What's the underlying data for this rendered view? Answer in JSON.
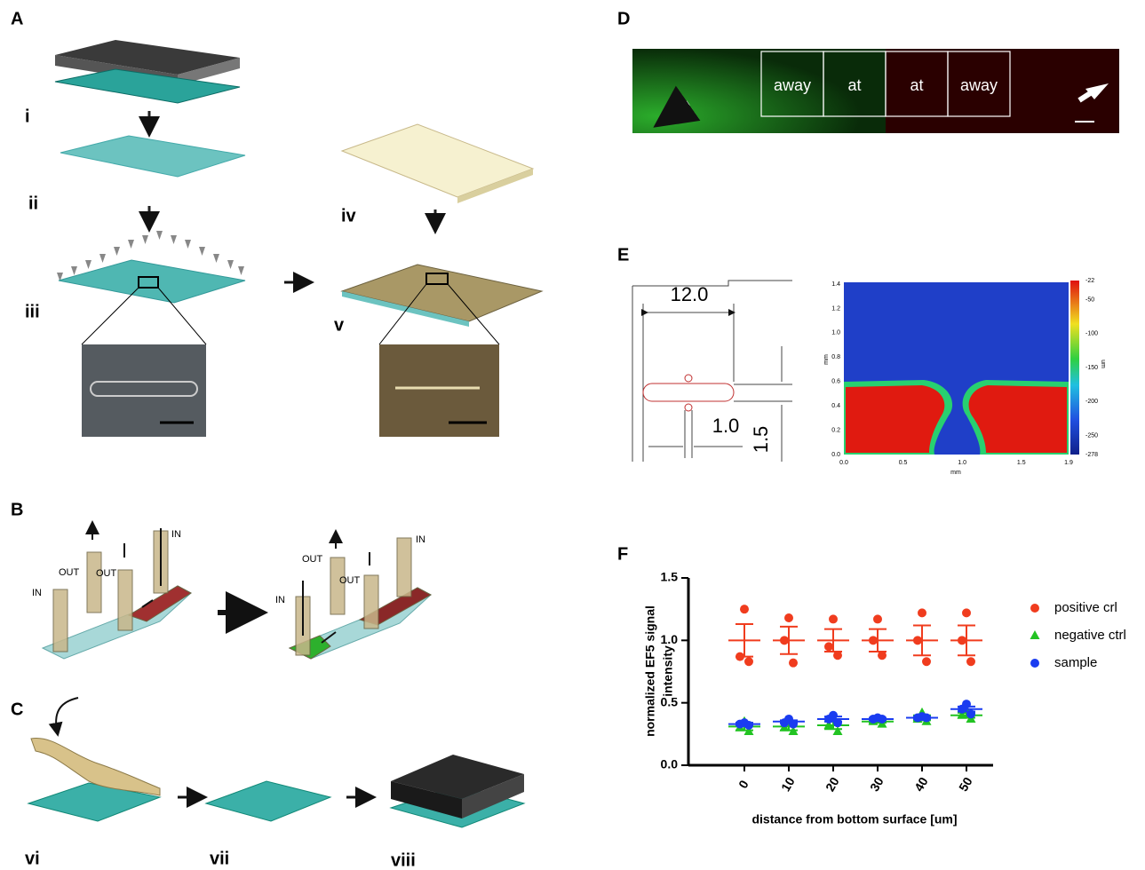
{
  "panel_labels": [
    "A",
    "B",
    "C",
    "D",
    "E",
    "F"
  ],
  "panel_a": {
    "steps": [
      "i",
      "ii",
      "iii",
      "iv",
      "v"
    ]
  },
  "panel_b": {
    "left": [
      "IN",
      "OUT",
      "OUT",
      "IN"
    ],
    "right": [
      "IN",
      "OUT",
      "OUT",
      "IN"
    ]
  },
  "panel_c": {
    "steps": [
      "vi",
      "vii",
      "viii"
    ]
  },
  "panel_d": {
    "regions": [
      "away",
      "at",
      "at",
      "away"
    ]
  },
  "panel_e": {
    "dimensions": [
      "12.0",
      "1.0",
      "1.5"
    ],
    "map": {
      "xlabel": "mm",
      "ylabel": "mm",
      "unit": "um",
      "xticks": [
        "0.0",
        "0.5",
        "1.0",
        "1.5",
        "1.9"
      ],
      "yticks": [
        "0.0",
        "0.2",
        "0.4",
        "0.6",
        "0.8",
        "1.0",
        "1.2",
        "1.4"
      ],
      "cticks": [
        "-22",
        "-50",
        "-100",
        "-150",
        "-200",
        "-250",
        "-278"
      ]
    }
  },
  "chart_data": {
    "type": "scatter",
    "ylabel": [
      "normalized EF5 signal",
      "intensity"
    ],
    "xlabel": "distance from bottom surface [um]",
    "categories": [
      "0",
      "10",
      "20",
      "30",
      "40",
      "50"
    ],
    "ylim": [
      0,
      1.5
    ],
    "yticks": [
      {
        "value": 0,
        "label": "0.0"
      },
      0.5,
      {
        "value": 1,
        "label": "1.0"
      },
      1.5
    ],
    "series": [
      {
        "name": "positive crl",
        "color": "#f03c1e",
        "marker": "circle",
        "values": [
          [
            1.25,
            0.87,
            0.83
          ],
          [
            1.18,
            1.0,
            0.82
          ],
          [
            1.17,
            0.95,
            0.88
          ],
          [
            1.17,
            1.0,
            0.88
          ],
          [
            1.22,
            1.0,
            0.83
          ],
          [
            1.22,
            1.0,
            0.83
          ]
        ],
        "means": [
          1.0,
          1.0,
          1.0,
          1.0,
          1.0,
          1.0
        ],
        "errors": [
          0.13,
          0.11,
          0.09,
          0.09,
          0.12,
          0.12
        ]
      },
      {
        "name": "negative ctrl",
        "color": "#22c322",
        "marker": "triangle",
        "values": [
          [
            0.35,
            0.3,
            0.27
          ],
          [
            0.36,
            0.3,
            0.27
          ],
          [
            0.37,
            0.32,
            0.27
          ],
          [
            0.37,
            0.35,
            0.33
          ],
          [
            0.42,
            0.37,
            0.35
          ],
          [
            0.44,
            0.4,
            0.37
          ]
        ],
        "means": [
          0.31,
          0.31,
          0.32,
          0.35,
          0.38,
          0.4
        ],
        "errors": [
          0.03,
          0.03,
          0.03,
          0.01,
          0.02,
          0.02
        ]
      },
      {
        "name": "sample",
        "color": "#1a3cf0",
        "marker": "circle",
        "values": [
          [
            0.34,
            0.33,
            0.32
          ],
          [
            0.37,
            0.34,
            0.33
          ],
          [
            0.4,
            0.37,
            0.34
          ],
          [
            0.38,
            0.37,
            0.37
          ],
          [
            0.39,
            0.38,
            0.38
          ],
          [
            0.49,
            0.45,
            0.41
          ]
        ],
        "means": [
          0.33,
          0.35,
          0.37,
          0.37,
          0.38,
          0.45
        ],
        "errors": [
          0.01,
          0.01,
          0.02,
          0.01,
          0.01,
          0.02
        ]
      }
    ]
  }
}
